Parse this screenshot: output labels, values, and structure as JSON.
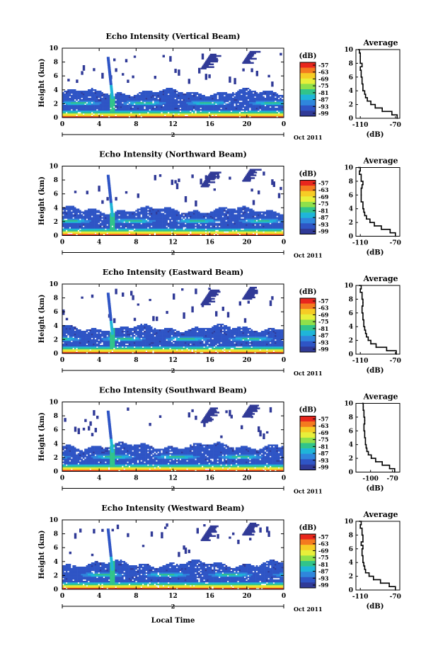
{
  "figure": {
    "x_axis_label": "Local Time",
    "date_label": "Oct 2011",
    "day_label": "2",
    "y_axis_label": "Height (km)",
    "colorbar_unit": "(dB)",
    "average_title": "Average",
    "average_xlabel": "(dB)"
  },
  "colorbar": {
    "ticks": [
      "-57",
      "-63",
      "-69",
      "-75",
      "-81",
      "-87",
      "-93",
      "-99"
    ],
    "colors": [
      "#e8261d",
      "#f47a1f",
      "#f6cc25",
      "#e8ef3a",
      "#8fe04a",
      "#31c48a",
      "#1fb5d8",
      "#2f86dc",
      "#2f55c5",
      "#303a97"
    ]
  },
  "chart_data": [
    {
      "type": "heatmap",
      "title": "Echo Intensity (Vertical Beam)",
      "x_ticks": [
        "0",
        "4",
        "8",
        "12",
        "16",
        "20",
        "0"
      ],
      "y_ticks": [
        "0",
        "2",
        "4",
        "6",
        "8",
        "10"
      ],
      "xlim": [
        0,
        24
      ],
      "ylim": [
        0,
        10
      ],
      "zlim": [
        -99,
        -57
      ],
      "average_profile": {
        "xlim": [
          -115,
          -65
        ],
        "x_ticks": [
          "-110",
          "-70"
        ],
        "y_ticks": [
          "0",
          "2",
          "4",
          "6",
          "8",
          "10"
        ],
        "height_km": [
          0.0,
          0.5,
          1.0,
          1.5,
          2.0,
          2.5,
          3.0,
          3.5,
          4.0,
          5.0,
          6.0,
          7.0,
          7.5,
          8.0,
          9.0,
          9.5,
          10.0
        ],
        "intensity_db": [
          -68,
          -74,
          -85,
          -93,
          -98,
          -102,
          -104,
          -105,
          -107,
          -108,
          -109,
          -110,
          -108,
          -110,
          -110,
          -111,
          -112
        ]
      }
    },
    {
      "type": "heatmap",
      "title": "Echo Intensity (Northward Beam)",
      "x_ticks": [
        "0",
        "4",
        "8",
        "12",
        "16",
        "20",
        "0"
      ],
      "y_ticks": [
        "0",
        "2",
        "4",
        "6",
        "8",
        "10"
      ],
      "xlim": [
        0,
        24
      ],
      "ylim": [
        0,
        10
      ],
      "zlim": [
        -99,
        -57
      ],
      "average_profile": {
        "xlim": [
          -115,
          -65
        ],
        "x_ticks": [
          "-110",
          "-70"
        ],
        "y_ticks": [
          "0",
          "2",
          "4",
          "6",
          "8",
          "10"
        ],
        "height_km": [
          0.0,
          0.5,
          1.0,
          1.5,
          2.0,
          2.5,
          3.0,
          3.5,
          4.0,
          5.0,
          6.0,
          7.0,
          7.5,
          8.0,
          9.0,
          9.5,
          10.0
        ],
        "intensity_db": [
          -70,
          -76,
          -86,
          -94,
          -99,
          -103,
          -105,
          -106,
          -107,
          -109,
          -109,
          -108,
          -107,
          -109,
          -111,
          -110,
          -112
        ]
      }
    },
    {
      "type": "heatmap",
      "title": "Echo Intensity (Eastward Beam)",
      "x_ticks": [
        "0",
        "4",
        "8",
        "12",
        "16",
        "20",
        "0"
      ],
      "y_ticks": [
        "0",
        "2",
        "4",
        "6",
        "8",
        "10"
      ],
      "xlim": [
        0,
        24
      ],
      "ylim": [
        0,
        10
      ],
      "zlim": [
        -99,
        -57
      ],
      "average_profile": {
        "xlim": [
          -115,
          -65
        ],
        "x_ticks": [
          "-110",
          "-70"
        ],
        "y_ticks": [
          "0",
          "2",
          "4",
          "6",
          "8",
          "10"
        ],
        "height_km": [
          0.0,
          0.5,
          1.0,
          1.5,
          2.0,
          2.5,
          3.0,
          3.5,
          4.0,
          5.0,
          6.0,
          7.0,
          7.5,
          8.0,
          9.0,
          9.5,
          10.0
        ],
        "intensity_db": [
          -69,
          -80,
          -92,
          -98,
          -101,
          -103,
          -104,
          -105,
          -106,
          -107,
          -108,
          -107,
          -107,
          -108,
          -110,
          -109,
          -111
        ]
      }
    },
    {
      "type": "heatmap",
      "title": "Echo Intensity (Southward Beam)",
      "x_ticks": [
        "0",
        "4",
        "8",
        "12",
        "16",
        "20",
        "0"
      ],
      "y_ticks": [
        "0",
        "2",
        "4",
        "6",
        "8",
        "10"
      ],
      "xlim": [
        0,
        24
      ],
      "ylim": [
        0,
        10
      ],
      "zlim": [
        -99,
        -57
      ],
      "average_profile": {
        "xlim": [
          -120,
          -60
        ],
        "x_ticks": [
          "-100",
          "-70"
        ],
        "y_ticks": [
          "0",
          "2",
          "4",
          "6",
          "8",
          "10"
        ],
        "height_km": [
          0.0,
          0.5,
          1.0,
          1.5,
          2.0,
          2.5,
          3.0,
          3.5,
          4.0,
          5.0,
          6.0,
          7.0,
          7.5,
          8.0,
          9.0,
          9.5,
          10.0
        ],
        "intensity_db": [
          -67,
          -74,
          -84,
          -93,
          -99,
          -103,
          -105,
          -106,
          -107,
          -108,
          -109,
          -108,
          -108,
          -109,
          -110,
          -110,
          -111
        ]
      }
    },
    {
      "type": "heatmap",
      "title": "Echo Intensity (Westward Beam)",
      "x_ticks": [
        "0",
        "4",
        "8",
        "12",
        "16",
        "20",
        "0"
      ],
      "y_ticks": [
        "0",
        "2",
        "4",
        "6",
        "8",
        "10"
      ],
      "xlim": [
        0,
        24
      ],
      "ylim": [
        0,
        10
      ],
      "zlim": [
        -99,
        -57
      ],
      "average_profile": {
        "xlim": [
          -115,
          -65
        ],
        "x_ticks": [
          "-110",
          "-70"
        ],
        "y_ticks": [
          "0",
          "2",
          "4",
          "6",
          "8",
          "10"
        ],
        "height_km": [
          0.0,
          0.5,
          1.0,
          1.5,
          2.0,
          2.5,
          3.0,
          3.5,
          4.0,
          5.0,
          6.0,
          6.5,
          7.0,
          8.0,
          9.0,
          9.5,
          10.0
        ],
        "intensity_db": [
          -70,
          -77,
          -87,
          -95,
          -100,
          -104,
          -105,
          -106,
          -107,
          -108,
          -107,
          -109,
          -107,
          -108,
          -110,
          -109,
          -111
        ]
      }
    }
  ]
}
